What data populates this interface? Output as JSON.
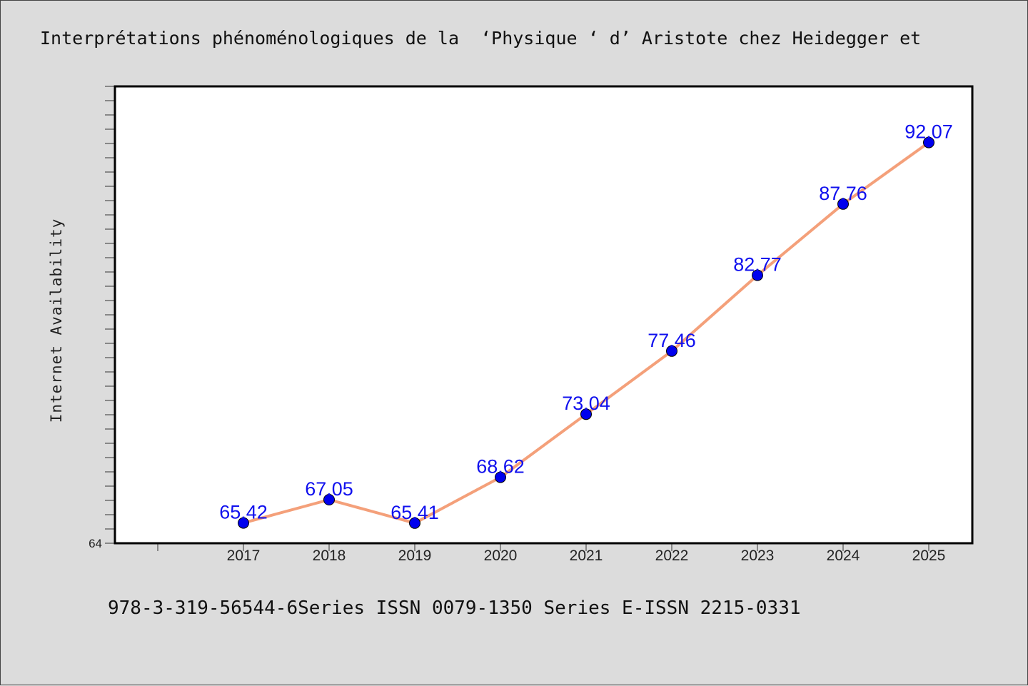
{
  "chart_data": {
    "type": "line",
    "title": "Interprétations phénoménologiques de la  ‘Physique ‘ d’ Aristote chez Heidegger et",
    "xlabel": "",
    "ylabel": "Internet Availability",
    "x": [
      "2017",
      "2018",
      "2019",
      "2020",
      "2021",
      "2022",
      "2023",
      "2024",
      "2025"
    ],
    "series": [
      {
        "values": [
          65.42,
          67.05,
          65.41,
          68.62,
          73.04,
          77.46,
          82.77,
          87.76,
          92.07
        ],
        "data_labels": [
          "65.42",
          "67.05",
          "65.41",
          "68.62",
          "73.04",
          "77.46",
          "82.77",
          "87.76",
          "92.07"
        ],
        "line_color": "#f4a07a",
        "marker_color": "#0000ee"
      }
    ],
    "ylim": [
      64,
      96
    ],
    "yticks_labeled": [
      "64"
    ],
    "grid": false,
    "legend": "none"
  },
  "footer": {
    "text": "978-3-319-56544-6Series ISSN 0079-1350 Series E-ISSN 2215-0331"
  }
}
